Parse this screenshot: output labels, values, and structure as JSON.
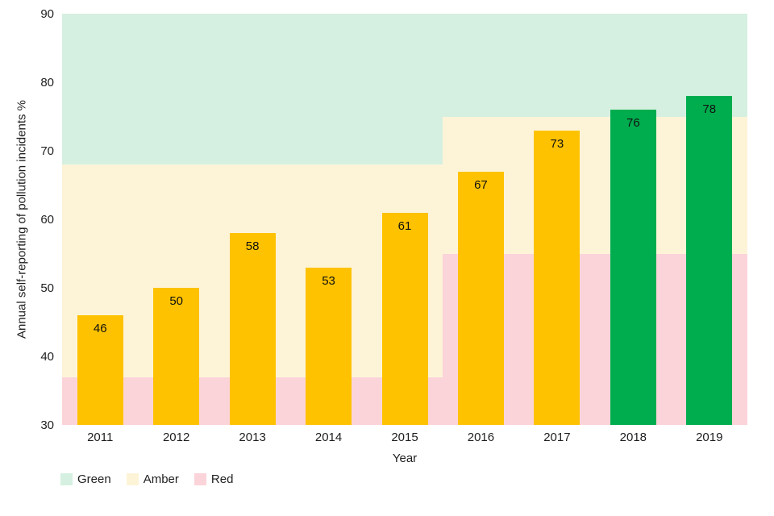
{
  "chart_data": {
    "type": "bar",
    "title": "",
    "xlabel": "Year",
    "ylabel": "Annual self-reporting of pollution incidents %",
    "categories": [
      "2011",
      "2012",
      "2013",
      "2014",
      "2015",
      "2016",
      "2017",
      "2018",
      "2019"
    ],
    "values": [
      46,
      50,
      58,
      53,
      61,
      67,
      73,
      76,
      78
    ],
    "value_labels": [
      "46",
      "50",
      "58",
      "53",
      "61",
      "67",
      "73",
      "76",
      "78"
    ],
    "bar_colors": [
      "#fec200",
      "#fec200",
      "#fec200",
      "#fec200",
      "#fec200",
      "#fec200",
      "#fec200",
      "#00ad4e",
      "#00ad4e"
    ],
    "ylim": [
      30,
      90
    ],
    "yticks": [
      30,
      40,
      50,
      60,
      70,
      80,
      90
    ],
    "grid": false,
    "axis_lines": false,
    "legend": {
      "position": "bottom-left",
      "entries": [
        {
          "label": "Green",
          "color": "#d5f0e0"
        },
        {
          "label": "Amber",
          "color": "#fdf4d8"
        },
        {
          "label": "Red",
          "color": "#fbd4da"
        }
      ]
    },
    "bands": [
      {
        "category_span": [
          "2011",
          "2015"
        ],
        "zones": [
          {
            "name": "Green",
            "from": 68,
            "to": 90,
            "color": "#d5f0e0"
          },
          {
            "name": "Amber",
            "from": 37,
            "to": 68,
            "color": "#fdf4d8"
          },
          {
            "name": "Red",
            "from": 30,
            "to": 37,
            "color": "#fbd4da"
          }
        ]
      },
      {
        "category_span": [
          "2016",
          "2019"
        ],
        "zones": [
          {
            "name": "Green",
            "from": 75,
            "to": 90,
            "color": "#d5f0e0"
          },
          {
            "name": "Amber",
            "from": 55,
            "to": 75,
            "color": "#fdf4d8"
          },
          {
            "name": "Red",
            "from": 30,
            "to": 55,
            "color": "#fbd4da"
          }
        ]
      }
    ]
  }
}
